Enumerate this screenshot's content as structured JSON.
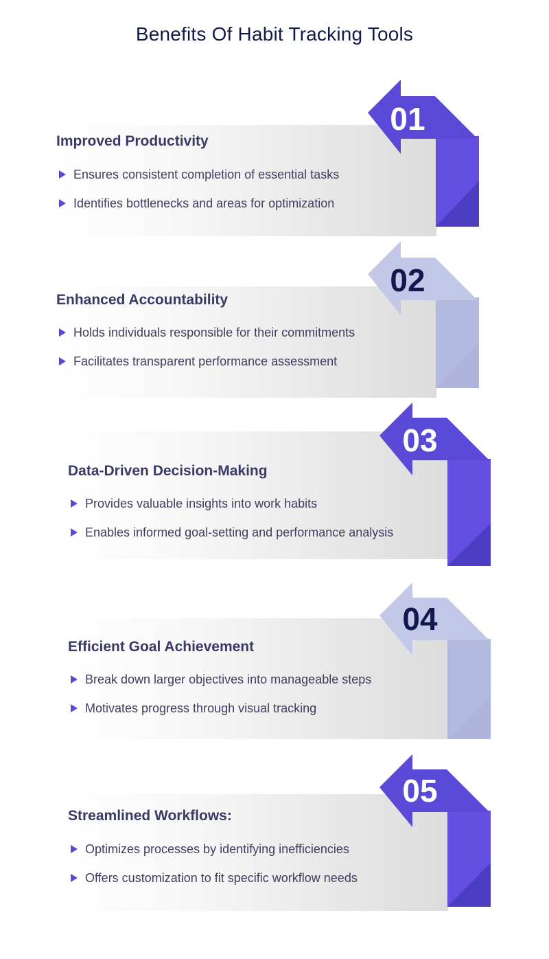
{
  "title": "Benefits Of Habit Tracking Tools",
  "cards": [
    {
      "number": "01",
      "heading": "Improved Productivity",
      "bullets": [
        "Ensures consistent completion of essential tasks",
        "Identifies bottlenecks and areas for optimization"
      ],
      "theme": "dark"
    },
    {
      "number": "02",
      "heading": "Enhanced Accountability",
      "bullets": [
        "Holds individuals responsible for their commitments",
        "Facilitates transparent performance assessment"
      ],
      "theme": "light"
    },
    {
      "number": "03",
      "heading": "Data-Driven Decision-Making",
      "bullets": [
        "Provides valuable insights into work habits",
        "Enables informed goal-setting and performance analysis"
      ],
      "theme": "dark"
    },
    {
      "number": "04",
      "heading": "Efficient Goal Achievement",
      "bullets": [
        "Break down larger objectives into manageable steps",
        "Motivates progress through visual tracking"
      ],
      "theme": "light"
    },
    {
      "number": "05",
      "heading": "Streamlined Workflows:",
      "bullets": [
        "Optimizes processes by identifying inefficiencies",
        "Offers customization to fit specific workflow needs"
      ],
      "theme": "dark"
    }
  ],
  "colors": {
    "title_text": "#121a4d",
    "dark_arrow": "#5a49d6",
    "dark_arrow_shadow": "#4b3cc2",
    "dark_block": "#644ee2",
    "dark_number": "#ffffff",
    "light_arrow": "#c3c8e8",
    "light_arrow_shadow": "#aeb4dc",
    "light_block": "#b3bae0",
    "light_number": "#121a4d",
    "bullet_marker": "#5a49d6"
  }
}
